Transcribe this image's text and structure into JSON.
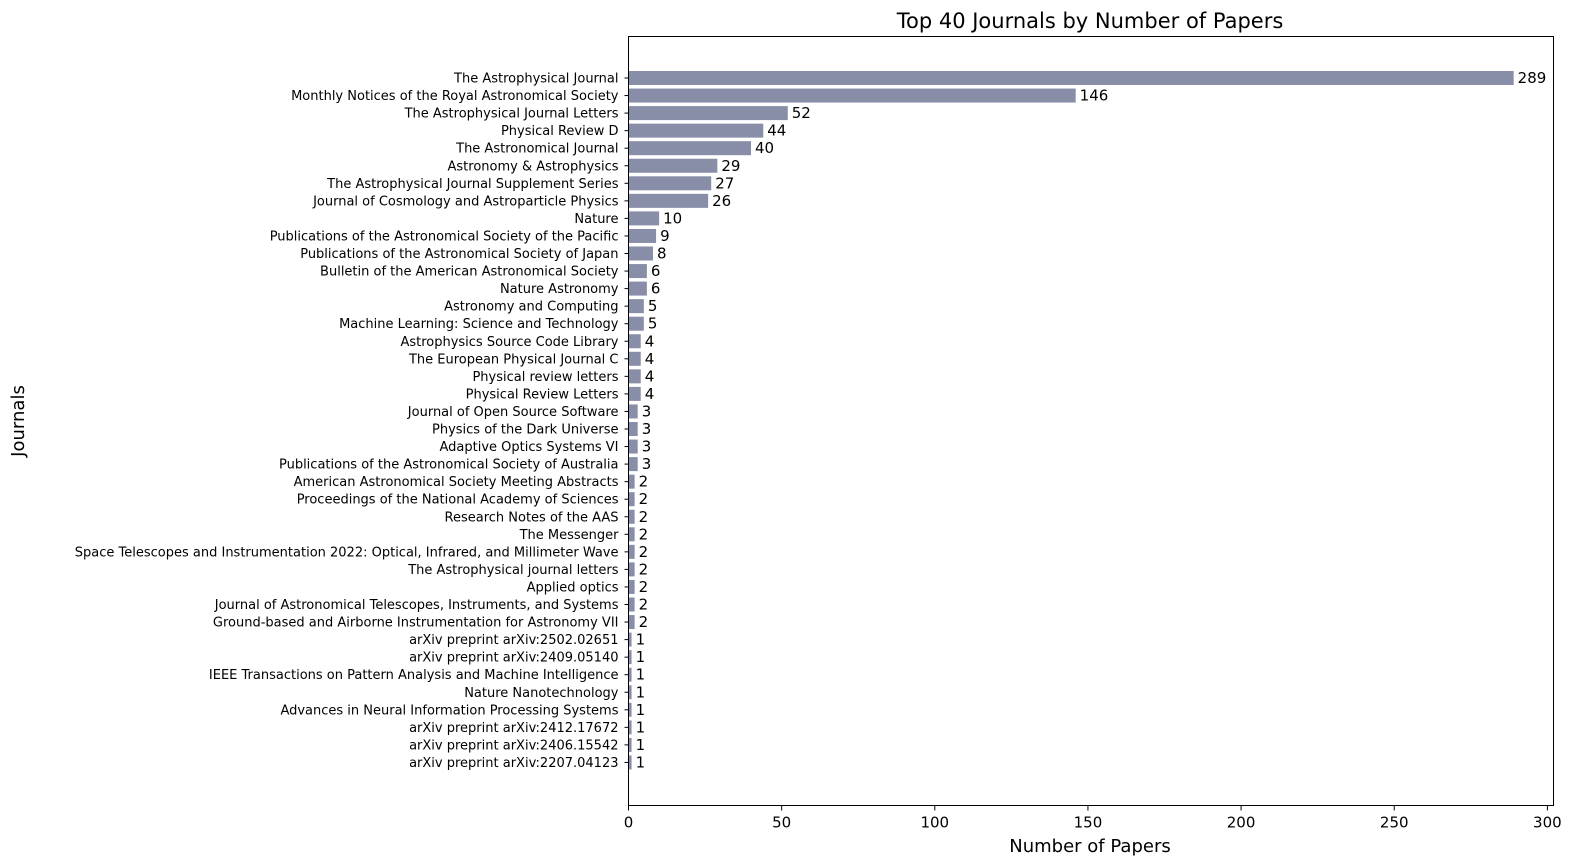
{
  "chart_data": {
    "type": "bar",
    "orientation": "horizontal",
    "title": "Top 40 Journals by Number of Papers",
    "xlabel": "Number of Papers",
    "ylabel": "Journals",
    "xlim": [
      0,
      302
    ],
    "xticks": [
      0,
      50,
      100,
      150,
      200,
      250,
      300
    ],
    "grid": false,
    "bar_color": "#888ea8",
    "categories": [
      "The Astrophysical Journal",
      "Monthly Notices of the Royal Astronomical Society",
      "The Astrophysical Journal Letters",
      "Physical Review D",
      "The Astronomical Journal",
      "Astronomy & Astrophysics",
      "The Astrophysical Journal Supplement Series",
      "Journal of Cosmology and Astroparticle Physics",
      "Nature",
      "Publications of the Astronomical Society of the Pacific",
      "Publications of the Astronomical Society of Japan",
      "Bulletin of the American Astronomical Society",
      "Nature Astronomy",
      "Astronomy and Computing",
      "Machine Learning: Science and Technology",
      "Astrophysics Source Code Library",
      "The European Physical Journal C",
      "Physical review letters",
      "Physical Review Letters",
      "Journal of Open Source Software",
      "Physics of the Dark Universe",
      "Adaptive Optics Systems VI",
      "Publications of the Astronomical Society of Australia",
      "American Astronomical Society Meeting Abstracts",
      "Proceedings of the National Academy of Sciences",
      "Research Notes of the AAS",
      "The Messenger",
      "Space Telescopes and Instrumentation 2022: Optical, Infrared, and Millimeter Wave",
      "The Astrophysical journal letters",
      "Applied optics",
      "Journal of Astronomical Telescopes, Instruments, and Systems",
      "Ground-based and Airborne Instrumentation for Astronomy VII",
      "arXiv preprint arXiv:2502.02651",
      "arXiv preprint arXiv:2409.05140",
      "IEEE Transactions on Pattern Analysis and Machine Intelligence",
      "Nature Nanotechnology",
      "Advances in Neural Information Processing Systems",
      "arXiv preprint arXiv:2412.17672",
      "arXiv preprint arXiv:2406.15542",
      "arXiv preprint arXiv:2207.04123"
    ],
    "values": [
      289,
      146,
      52,
      44,
      40,
      29,
      27,
      26,
      10,
      9,
      8,
      6,
      6,
      5,
      5,
      4,
      4,
      4,
      4,
      3,
      3,
      3,
      3,
      2,
      2,
      2,
      2,
      2,
      2,
      2,
      2,
      2,
      1,
      1,
      1,
      1,
      1,
      1,
      1,
      1
    ]
  }
}
